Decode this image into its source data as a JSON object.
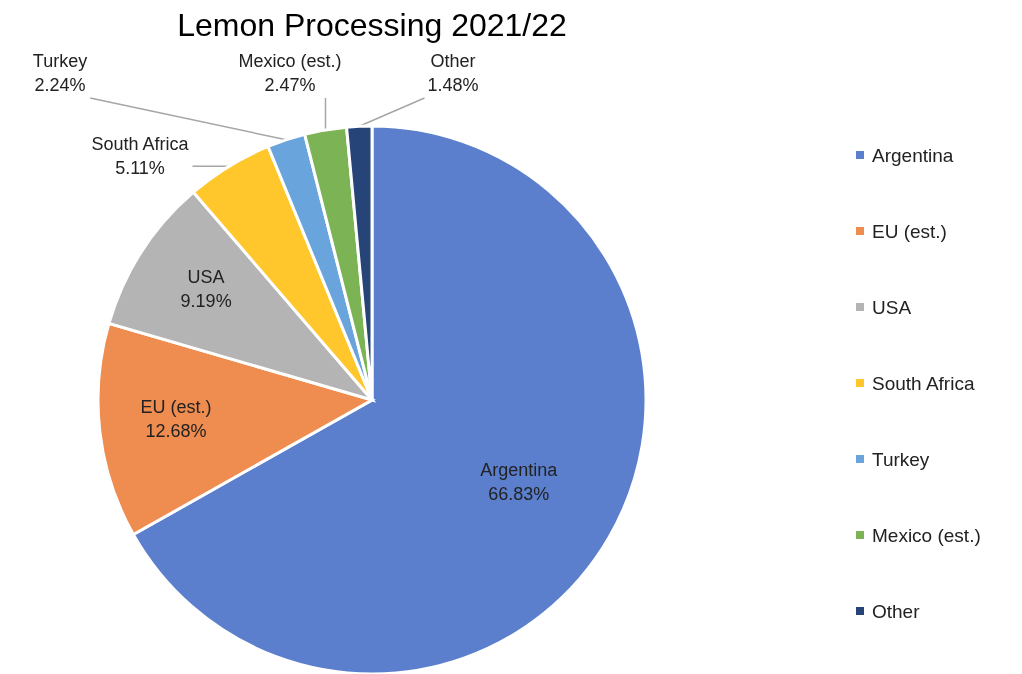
{
  "chart_data": {
    "type": "pie",
    "title": "Lemon Processing 2021/22",
    "categories": [
      "Argentina",
      "EU (est.)",
      "USA",
      "South Africa",
      "Turkey",
      "Mexico (est.)",
      "Other"
    ],
    "values": [
      66.83,
      12.68,
      9.19,
      5.11,
      2.24,
      2.47,
      1.48
    ],
    "value_labels": [
      "66.83%",
      "12.68%",
      "9.19%",
      "5.11%",
      "2.24%",
      "2.47%",
      "1.48%"
    ],
    "colors": [
      "#5b7fcc",
      "#ef8c4f",
      "#b4b4b4",
      "#ffc72c",
      "#6aa4dc",
      "#7cb455",
      "#264478"
    ],
    "legend": "right"
  }
}
